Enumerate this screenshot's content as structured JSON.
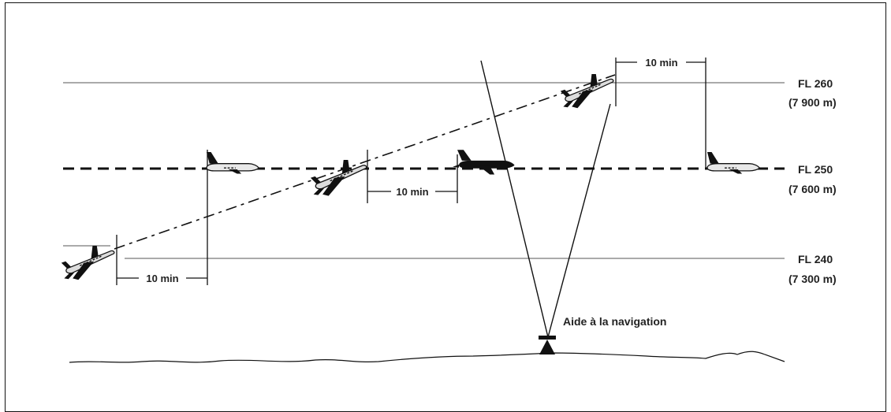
{
  "levels": [
    {
      "fl": "FL 260",
      "alt": "(7 900 m)"
    },
    {
      "fl": "FL 250",
      "alt": "(7 600 m)"
    },
    {
      "fl": "FL 240",
      "alt": "(7 300 m)"
    }
  ],
  "intervals": [
    "10 min",
    "10 min",
    "10 min"
  ],
  "navaid_label": "Aide à la navigation"
}
